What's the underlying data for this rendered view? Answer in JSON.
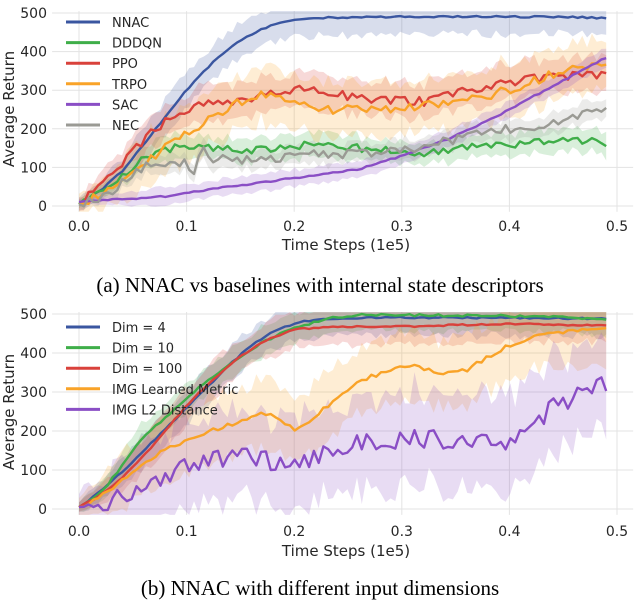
{
  "colors": {
    "NNAC": "#3a56a0",
    "DDDQN": "#3fae49",
    "PPO": "#d9413b",
    "TRPO": "#f9a328",
    "SAC": "#8a4ec5",
    "NEC": "#9a9a94",
    "grid": "#e3e3e3"
  },
  "chart_data": [
    {
      "type": "line",
      "caption": "(a) NNAC vs baselines with internal state descriptors",
      "xlabel": "Time Steps (1e5)",
      "ylabel": "Average Return",
      "xlim": [
        -0.025,
        0.515
      ],
      "ylim": [
        -15,
        505
      ],
      "xticks": [
        0.0,
        0.1,
        0.2,
        0.3,
        0.4,
        0.5
      ],
      "xtick_labels": [
        "0.0",
        "0.1",
        "0.2",
        "0.3",
        "0.4",
        "0.5"
      ],
      "yticks": [
        0,
        100,
        200,
        300,
        400,
        500
      ],
      "ytick_labels": [
        "0",
        "100",
        "200",
        "300",
        "400",
        "500"
      ],
      "legend_loc": "top-left",
      "series": [
        {
          "name": "NNAC",
          "color": "#3a56a0",
          "band": 45,
          "noise": 2,
          "x": [
            0,
            0.02,
            0.04,
            0.06,
            0.08,
            0.1,
            0.12,
            0.14,
            0.16,
            0.18,
            0.2,
            0.22,
            0.24,
            0.26,
            0.3,
            0.35,
            0.4,
            0.45,
            0.49
          ],
          "y": [
            5,
            40,
            90,
            160,
            230,
            300,
            360,
            410,
            445,
            470,
            482,
            487,
            488,
            489,
            490,
            491,
            490,
            490,
            487
          ]
        },
        {
          "name": "DDDQN",
          "color": "#3fae49",
          "band": 30,
          "noise": 10,
          "x": [
            0,
            0.02,
            0.04,
            0.06,
            0.08,
            0.1,
            0.12,
            0.16,
            0.2,
            0.22,
            0.26,
            0.3,
            0.32,
            0.36,
            0.4,
            0.44,
            0.48,
            0.49
          ],
          "y": [
            5,
            40,
            80,
            125,
            148,
            155,
            150,
            145,
            150,
            165,
            150,
            140,
            135,
            150,
            160,
            165,
            170,
            165
          ]
        },
        {
          "name": "PPO",
          "color": "#d9413b",
          "band": 45,
          "noise": 12,
          "x": [
            0,
            0.02,
            0.04,
            0.06,
            0.08,
            0.1,
            0.12,
            0.16,
            0.2,
            0.24,
            0.28,
            0.32,
            0.36,
            0.4,
            0.44,
            0.47,
            0.49
          ],
          "y": [
            5,
            60,
            110,
            170,
            220,
            250,
            265,
            280,
            305,
            290,
            275,
            270,
            300,
            320,
            335,
            340,
            340
          ]
        },
        {
          "name": "TRPO",
          "color": "#f9a328",
          "band": 70,
          "noise": 12,
          "x": [
            0,
            0.02,
            0.04,
            0.06,
            0.08,
            0.1,
            0.12,
            0.14,
            0.16,
            0.18,
            0.2,
            0.22,
            0.25,
            0.3,
            0.35,
            0.4,
            0.45,
            0.49
          ],
          "y": [
            5,
            25,
            60,
            110,
            150,
            190,
            225,
            255,
            285,
            295,
            270,
            250,
            250,
            255,
            265,
            300,
            350,
            370
          ]
        },
        {
          "name": "SAC",
          "color": "#8a4ec5",
          "band": 22,
          "noise": 2,
          "x": [
            0,
            0.02,
            0.04,
            0.06,
            0.08,
            0.1,
            0.14,
            0.18,
            0.22,
            0.26,
            0.3,
            0.34,
            0.38,
            0.42,
            0.46,
            0.49
          ],
          "y": [
            10,
            15,
            18,
            20,
            25,
            35,
            50,
            65,
            80,
            95,
            130,
            170,
            220,
            280,
            340,
            385
          ]
        },
        {
          "name": "NEC",
          "color": "#9a9a94",
          "band": 25,
          "noise": 12,
          "x": [
            0,
            0.02,
            0.04,
            0.06,
            0.08,
            0.1,
            0.11,
            0.112,
            0.12,
            0.16,
            0.2,
            0.24,
            0.28,
            0.32,
            0.36,
            0.4,
            0.44,
            0.49
          ],
          "y": [
            5,
            20,
            60,
            100,
            110,
            110,
            85,
            160,
            125,
            120,
            130,
            135,
            140,
            155,
            180,
            200,
            215,
            250
          ]
        }
      ]
    },
    {
      "type": "line",
      "caption": "(b) NNAC with different input dimensions",
      "xlabel": "Time Steps (1e5)",
      "ylabel": "Average Return",
      "xlim": [
        -0.025,
        0.515
      ],
      "ylim": [
        -15,
        505
      ],
      "xticks": [
        0.0,
        0.1,
        0.2,
        0.3,
        0.4,
        0.5
      ],
      "xtick_labels": [
        "0.0",
        "0.1",
        "0.2",
        "0.3",
        "0.4",
        "0.5"
      ],
      "yticks": [
        0,
        100,
        200,
        300,
        400,
        500
      ],
      "ytick_labels": [
        "0",
        "100",
        "200",
        "300",
        "400",
        "500"
      ],
      "legend_loc": "top-left",
      "series": [
        {
          "name": "Dim = 4",
          "color": "#3a56a0",
          "band": 45,
          "noise": 2,
          "x": [
            0,
            0.02,
            0.04,
            0.06,
            0.08,
            0.1,
            0.12,
            0.14,
            0.16,
            0.18,
            0.2,
            0.22,
            0.26,
            0.3,
            0.4,
            0.49
          ],
          "y": [
            5,
            45,
            95,
            150,
            205,
            260,
            315,
            370,
            420,
            455,
            475,
            487,
            490,
            491,
            490,
            488
          ]
        },
        {
          "name": "Dim = 10",
          "color": "#3fae49",
          "band": 40,
          "noise": 3,
          "x": [
            0,
            0.02,
            0.04,
            0.06,
            0.08,
            0.1,
            0.12,
            0.14,
            0.16,
            0.18,
            0.2,
            0.22,
            0.24,
            0.26,
            0.3,
            0.4,
            0.49
          ],
          "y": [
            5,
            40,
            110,
            185,
            235,
            285,
            330,
            370,
            410,
            440,
            465,
            480,
            492,
            497,
            497,
            495,
            488
          ]
        },
        {
          "name": "Dim = 100",
          "color": "#d9413b",
          "band": 45,
          "noise": 2,
          "x": [
            0,
            0.02,
            0.04,
            0.06,
            0.08,
            0.1,
            0.12,
            0.14,
            0.16,
            0.18,
            0.2,
            0.22,
            0.24,
            0.3,
            0.4,
            0.49
          ],
          "y": [
            5,
            35,
            80,
            135,
            200,
            265,
            320,
            370,
            410,
            440,
            460,
            465,
            467,
            468,
            475,
            470
          ]
        },
        {
          "name": "IMG Learned Metric",
          "color": "#f9a328",
          "band": 85,
          "noise": 6,
          "x": [
            0,
            0.02,
            0.04,
            0.06,
            0.08,
            0.1,
            0.12,
            0.14,
            0.16,
            0.18,
            0.2,
            0.22,
            0.24,
            0.26,
            0.28,
            0.3,
            0.34,
            0.36,
            0.38,
            0.4,
            0.42,
            0.44,
            0.46,
            0.49
          ],
          "y": [
            5,
            30,
            70,
            120,
            150,
            180,
            200,
            215,
            240,
            245,
            200,
            240,
            285,
            330,
            345,
            370,
            350,
            355,
            390,
            420,
            440,
            450,
            460,
            465
          ]
        },
        {
          "name": "IMG L2 Distance",
          "color": "#8a4ec5",
          "band": 120,
          "noise": 25,
          "x": [
            0,
            0.02,
            0.04,
            0.06,
            0.08,
            0.1,
            0.12,
            0.14,
            0.16,
            0.18,
            0.2,
            0.22,
            0.24,
            0.26,
            0.28,
            0.3,
            0.32,
            0.34,
            0.36,
            0.38,
            0.4,
            0.42,
            0.44,
            0.46,
            0.48,
            0.49
          ],
          "y": [
            5,
            15,
            30,
            40,
            75,
            110,
            120,
            130,
            140,
            120,
            125,
            130,
            150,
            175,
            165,
            185,
            180,
            175,
            175,
            190,
            175,
            200,
            260,
            285,
            310,
            325
          ]
        }
      ]
    }
  ]
}
